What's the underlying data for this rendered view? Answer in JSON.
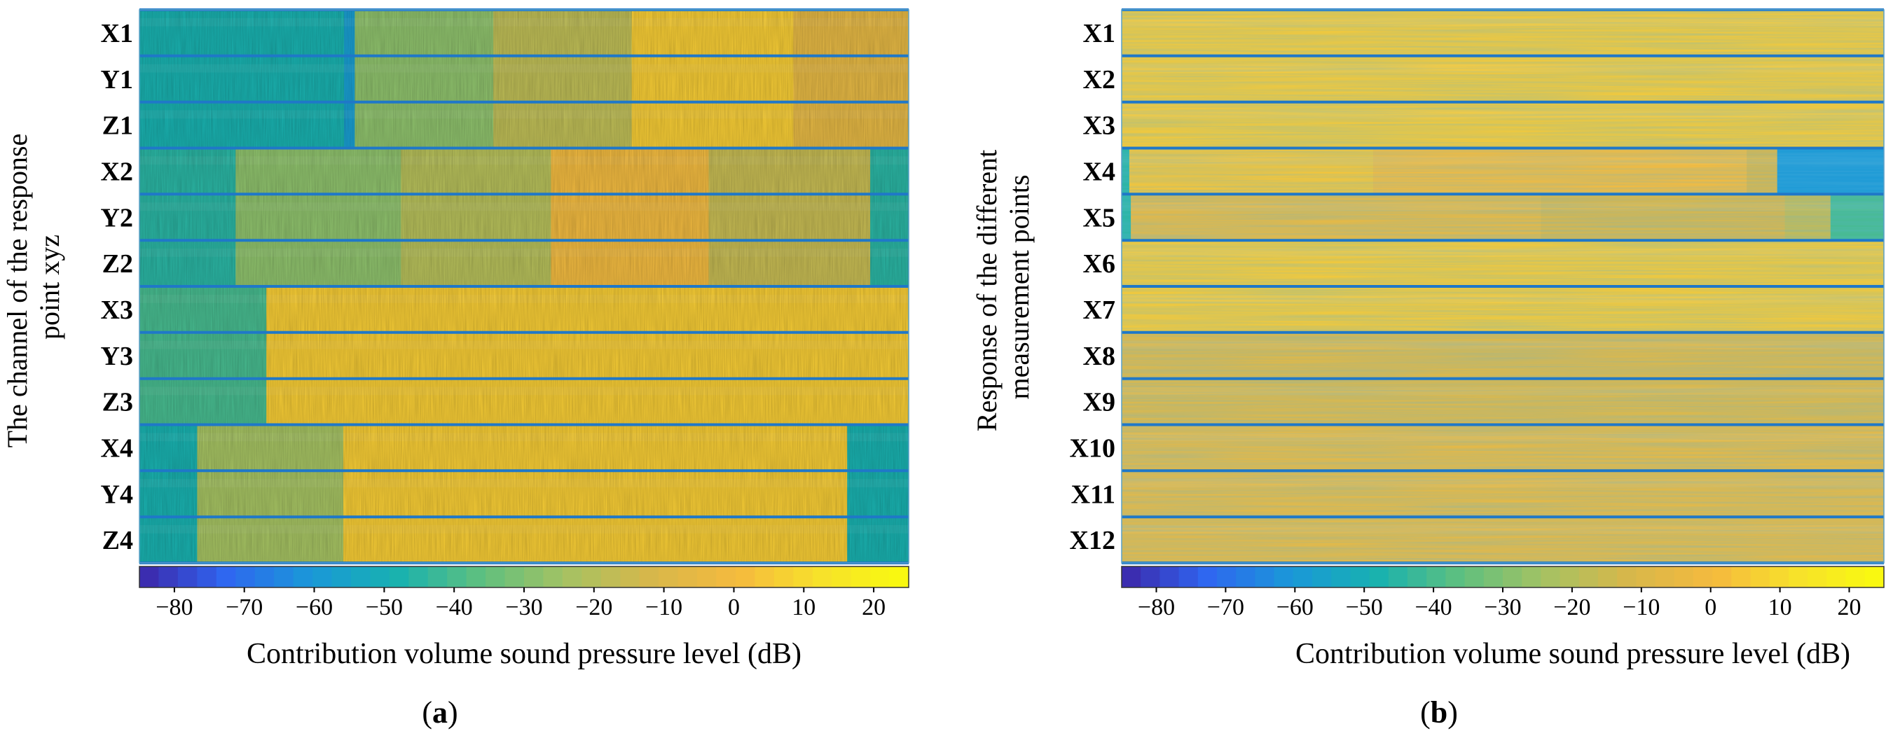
{
  "colors": {
    "scale": [
      "#3d26a8",
      "#2f66f0",
      "#1a98d8",
      "#17b1b0",
      "#5ec07f",
      "#a6c262",
      "#d8b74a",
      "#f5ba3e",
      "#f7e22a",
      "#f9fb0e"
    ],
    "separator": "#1f78c8"
  },
  "panels": [
    {
      "id": "a",
      "label_open": "(",
      "label_letter": "a",
      "label_close": ")",
      "ylabel_lines": [
        "The channel of the response",
        "point xyz"
      ],
      "xlabel": "Contribution volume sound pressure level (dB)"
    },
    {
      "id": "b",
      "label_open": "(",
      "label_letter": "b",
      "label_close": ")",
      "ylabel_lines": [
        "Response of the different",
        "measurement points"
      ],
      "xlabel": "Contribution volume sound pressure level (dB)"
    }
  ],
  "chart_data": [
    {
      "type": "heatmap",
      "panel": "a",
      "title": "",
      "xlabel": "Contribution volume sound pressure level (dB)",
      "ylabel": "The channel of the response point xyz",
      "rows": [
        "X1",
        "Y1",
        "Z1",
        "X2",
        "Y2",
        "Z2",
        "X3",
        "Y3",
        "Z3",
        "X4",
        "Y4",
        "Z4"
      ],
      "color_range": [
        -85,
        25
      ],
      "x_axis": {
        "ticks": [
          -80,
          -70,
          -60,
          -50,
          -40,
          -30,
          -20,
          -10,
          0,
          10,
          20
        ],
        "tick_labels": [
          "−80",
          "−70",
          "−60",
          "−50",
          "−40",
          "−30",
          "−20",
          "−10",
          "0",
          "10",
          "20"
        ]
      },
      "segments": [
        {
          "rows": [
            0,
            1,
            2
          ],
          "breakpoints": [
            0.0,
            0.266,
            0.28,
            0.46,
            0.64,
            0.85,
            1.0
          ],
          "levels": [
            -48,
            -58,
            -28,
            -18,
            6,
            -6
          ]
        },
        {
          "rows": [
            3,
            4,
            5
          ],
          "breakpoints": [
            0.0,
            0.125,
            0.34,
            0.535,
            0.74,
            0.95,
            1.0
          ],
          "levels": [
            -45,
            -28,
            -20,
            -1,
            -16,
            -45
          ]
        },
        {
          "rows": [
            6,
            7,
            8
          ],
          "breakpoints": [
            0.0,
            0.165,
            1.0
          ],
          "levels": [
            -40,
            6
          ]
        },
        {
          "rows": [
            9,
            10,
            11
          ],
          "breakpoints": [
            0.0,
            0.075,
            0.265,
            0.92,
            1.0
          ],
          "levels": [
            -48,
            -24,
            6,
            -48
          ]
        }
      ]
    },
    {
      "type": "heatmap",
      "panel": "b",
      "title": "",
      "xlabel": "Contribution volume sound pressure level (dB)",
      "ylabel": "Response of the different measurement points",
      "rows": [
        "X1",
        "X2",
        "X3",
        "X4",
        "X5",
        "X6",
        "X7",
        "X8",
        "X9",
        "X10",
        "X11",
        "X12"
      ],
      "color_range": [
        -85,
        25
      ],
      "x_axis": {
        "ticks": [
          -80,
          -70,
          -60,
          -50,
          -40,
          -30,
          -20,
          -10,
          0,
          10,
          20
        ],
        "tick_labels": [
          "−80",
          "−70",
          "−60",
          "−50",
          "−40",
          "−30",
          "−20",
          "−10",
          "0",
          "10",
          "20"
        ]
      },
      "segments": [
        {
          "rows": [
            0,
            1,
            2
          ],
          "breakpoints": [
            0.0,
            1.0
          ],
          "levels": [
            5
          ]
        },
        {
          "rows": [
            3
          ],
          "breakpoints": [
            0.0,
            0.01,
            0.33,
            0.82,
            0.86,
            1.0
          ],
          "levels": [
            -45,
            4,
            1,
            -10,
            -60
          ]
        },
        {
          "rows": [
            4
          ],
          "breakpoints": [
            0.0,
            0.012,
            0.55,
            0.87,
            0.93,
            1.0
          ],
          "levels": [
            -45,
            -5,
            -10,
            -16,
            -40
          ]
        },
        {
          "rows": [
            5,
            6
          ],
          "breakpoints": [
            0.0,
            1.0
          ],
          "levels": [
            5
          ]
        },
        {
          "rows": [
            7,
            8
          ],
          "breakpoints": [
            0.0,
            1.0
          ],
          "levels": [
            -8
          ]
        },
        {
          "rows": [
            9,
            10,
            11
          ],
          "breakpoints": [
            0.0,
            1.0
          ],
          "levels": [
            -5
          ]
        }
      ]
    }
  ]
}
